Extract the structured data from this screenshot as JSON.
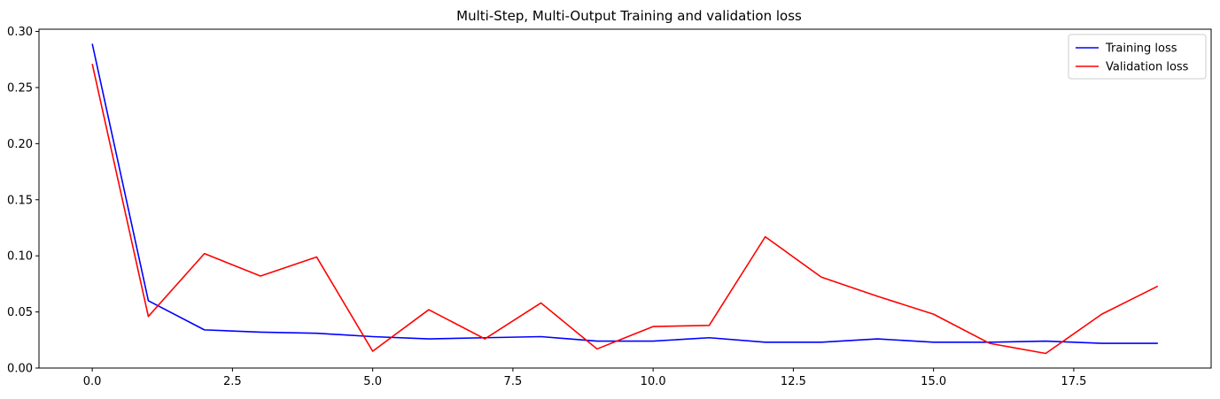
{
  "chart_data": {
    "type": "line",
    "title": "Multi-Step, Multi-Output Training and validation loss",
    "xlabel": "",
    "ylabel": "",
    "x": [
      0,
      1,
      2,
      3,
      4,
      5,
      6,
      7,
      8,
      9,
      10,
      11,
      12,
      13,
      14,
      15,
      16,
      17,
      18,
      19
    ],
    "series": [
      {
        "name": "Training loss",
        "color": "#0000ff",
        "values": [
          0.289,
          0.06,
          0.034,
          0.032,
          0.031,
          0.028,
          0.026,
          0.027,
          0.028,
          0.024,
          0.024,
          0.027,
          0.023,
          0.023,
          0.026,
          0.023,
          0.023,
          0.024,
          0.022,
          0.022
        ]
      },
      {
        "name": "Validation loss",
        "color": "#ff0000",
        "values": [
          0.271,
          0.046,
          0.102,
          0.082,
          0.099,
          0.015,
          0.052,
          0.026,
          0.058,
          0.017,
          0.037,
          0.038,
          0.117,
          0.081,
          0.064,
          0.048,
          0.022,
          0.013,
          0.048,
          0.073
        ]
      }
    ],
    "xlim": [
      -0.95,
      19.95
    ],
    "ylim": [
      0,
      0.302
    ],
    "xticks": [
      0.0,
      2.5,
      5.0,
      7.5,
      10.0,
      12.5,
      15.0,
      17.5
    ],
    "xtick_labels": [
      "0.0",
      "2.5",
      "5.0",
      "7.5",
      "10.0",
      "12.5",
      "15.0",
      "17.5"
    ],
    "yticks": [
      0.0,
      0.05,
      0.1,
      0.15,
      0.2,
      0.25,
      0.3
    ],
    "ytick_labels": [
      "0.00",
      "0.05",
      "0.10",
      "0.15",
      "0.20",
      "0.25",
      "0.30"
    ],
    "grid": false,
    "legend_position": "top-right"
  }
}
